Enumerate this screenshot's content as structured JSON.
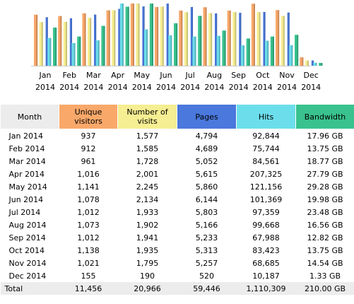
{
  "colors": {
    "visitors": "#F9A86A",
    "visits": "#F6EE92",
    "pages": "#4A78DC",
    "hits": "#6CDEEB",
    "bandwidth": "#39C28E",
    "header_bg": "#ececec"
  },
  "chart_data": {
    "type": "bar",
    "categories": [
      "Jan 2014",
      "Feb 2014",
      "Mar 2014",
      "Apr 2014",
      "May 2014",
      "Jun 2014",
      "Jul 2014",
      "Aug 2014",
      "Sep 2014",
      "Oct 2014",
      "Nov 2014",
      "Dec 2014"
    ],
    "series": [
      {
        "name": "Unique visitors",
        "values": [
          937,
          912,
          961,
          1016,
          1141,
          1078,
          1012,
          1073,
          1012,
          1138,
          1021,
          155
        ]
      },
      {
        "name": "Number of visits",
        "values": [
          1577,
          1585,
          1728,
          2001,
          2245,
          2134,
          1933,
          1902,
          1941,
          1935,
          1795,
          190
        ]
      },
      {
        "name": "Pages",
        "values": [
          4794,
          4689,
          5052,
          5615,
          5860,
          6144,
          5803,
          5166,
          5233,
          5313,
          5257,
          520
        ]
      },
      {
        "name": "Hits",
        "values": [
          92844,
          75744,
          84561,
          207325,
          121156,
          101369,
          97359,
          99668,
          67988,
          83423,
          68685,
          10187
        ]
      },
      {
        "name": "Bandwidth",
        "values": [
          17.96,
          13.75,
          18.77,
          27.79,
          29.28,
          19.98,
          23.48,
          16.56,
          12.82,
          13.75,
          14.54,
          1.33
        ]
      }
    ],
    "grid": false,
    "legend": "none"
  },
  "table": {
    "headers": {
      "month": "Month",
      "visitors": "Unique visitors",
      "visits": "Number of visits",
      "pages": "Pages",
      "hits": "Hits",
      "bandwidth": "Bandwidth"
    },
    "rows": [
      {
        "month": "Jan 2014",
        "visitors": "937",
        "visits": "1,577",
        "pages": "4,794",
        "hits": "92,844",
        "bandwidth": "17.96 GB"
      },
      {
        "month": "Feb 2014",
        "visitors": "912",
        "visits": "1,585",
        "pages": "4,689",
        "hits": "75,744",
        "bandwidth": "13.75 GB"
      },
      {
        "month": "Mar 2014",
        "visitors": "961",
        "visits": "1,728",
        "pages": "5,052",
        "hits": "84,561",
        "bandwidth": "18.77 GB"
      },
      {
        "month": "Apr 2014",
        "visitors": "1,016",
        "visits": "2,001",
        "pages": "5,615",
        "hits": "207,325",
        "bandwidth": "27.79 GB"
      },
      {
        "month": "May 2014",
        "visitors": "1,141",
        "visits": "2,245",
        "pages": "5,860",
        "hits": "121,156",
        "bandwidth": "29.28 GB"
      },
      {
        "month": "Jun 2014",
        "visitors": "1,078",
        "visits": "2,134",
        "pages": "6,144",
        "hits": "101,369",
        "bandwidth": "19.98 GB"
      },
      {
        "month": "Jul 2014",
        "visitors": "1,012",
        "visits": "1,933",
        "pages": "5,803",
        "hits": "97,359",
        "bandwidth": "23.48 GB"
      },
      {
        "month": "Aug 2014",
        "visitors": "1,073",
        "visits": "1,902",
        "pages": "5,166",
        "hits": "99,668",
        "bandwidth": "16.56 GB"
      },
      {
        "month": "Sep 2014",
        "visitors": "1,012",
        "visits": "1,941",
        "pages": "5,233",
        "hits": "67,988",
        "bandwidth": "12.82 GB"
      },
      {
        "month": "Oct 2014",
        "visitors": "1,138",
        "visits": "1,935",
        "pages": "5,313",
        "hits": "83,423",
        "bandwidth": "13.75 GB"
      },
      {
        "month": "Nov 2014",
        "visitors": "1,021",
        "visits": "1,795",
        "pages": "5,257",
        "hits": "68,685",
        "bandwidth": "14.54 GB"
      },
      {
        "month": "Dec 2014",
        "visitors": "155",
        "visits": "190",
        "pages": "520",
        "hits": "10,187",
        "bandwidth": "1.33 GB"
      }
    ],
    "total": {
      "month": "Total",
      "visitors": "11,456",
      "visits": "20,966",
      "pages": "59,446",
      "hits": "1,110,309",
      "bandwidth": "210.00 GB"
    }
  }
}
